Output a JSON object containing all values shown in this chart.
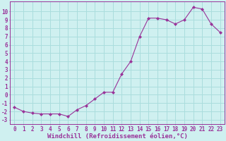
{
  "x": [
    0,
    1,
    2,
    3,
    4,
    5,
    6,
    7,
    8,
    9,
    10,
    11,
    12,
    13,
    14,
    15,
    16,
    17,
    18,
    19,
    20,
    21,
    22,
    23
  ],
  "y": [
    -1.5,
    -2.0,
    -2.2,
    -2.3,
    -2.3,
    -2.3,
    -2.6,
    -1.8,
    -1.3,
    -0.5,
    0.3,
    0.3,
    2.5,
    4.0,
    7.0,
    9.2,
    9.2,
    9.0,
    8.5,
    9.0,
    10.5,
    10.3,
    8.5,
    7.5
  ],
  "line_color": "#993399",
  "marker": "D",
  "marker_size": 2.0,
  "bg_color": "#cff0f0",
  "grid_color": "#aadddd",
  "xlabel": "Windchill (Refroidissement éolien,°C)",
  "ylabel_ticks": [
    -3,
    -2,
    -1,
    0,
    1,
    2,
    3,
    4,
    5,
    6,
    7,
    8,
    9,
    10
  ],
  "ylim": [
    -3.5,
    11.2
  ],
  "xlim": [
    -0.5,
    23.5
  ],
  "tick_color": "#993399",
  "tick_fontsize": 5.5,
  "xlabel_fontsize": 6.5,
  "axis_label_color": "#993399"
}
